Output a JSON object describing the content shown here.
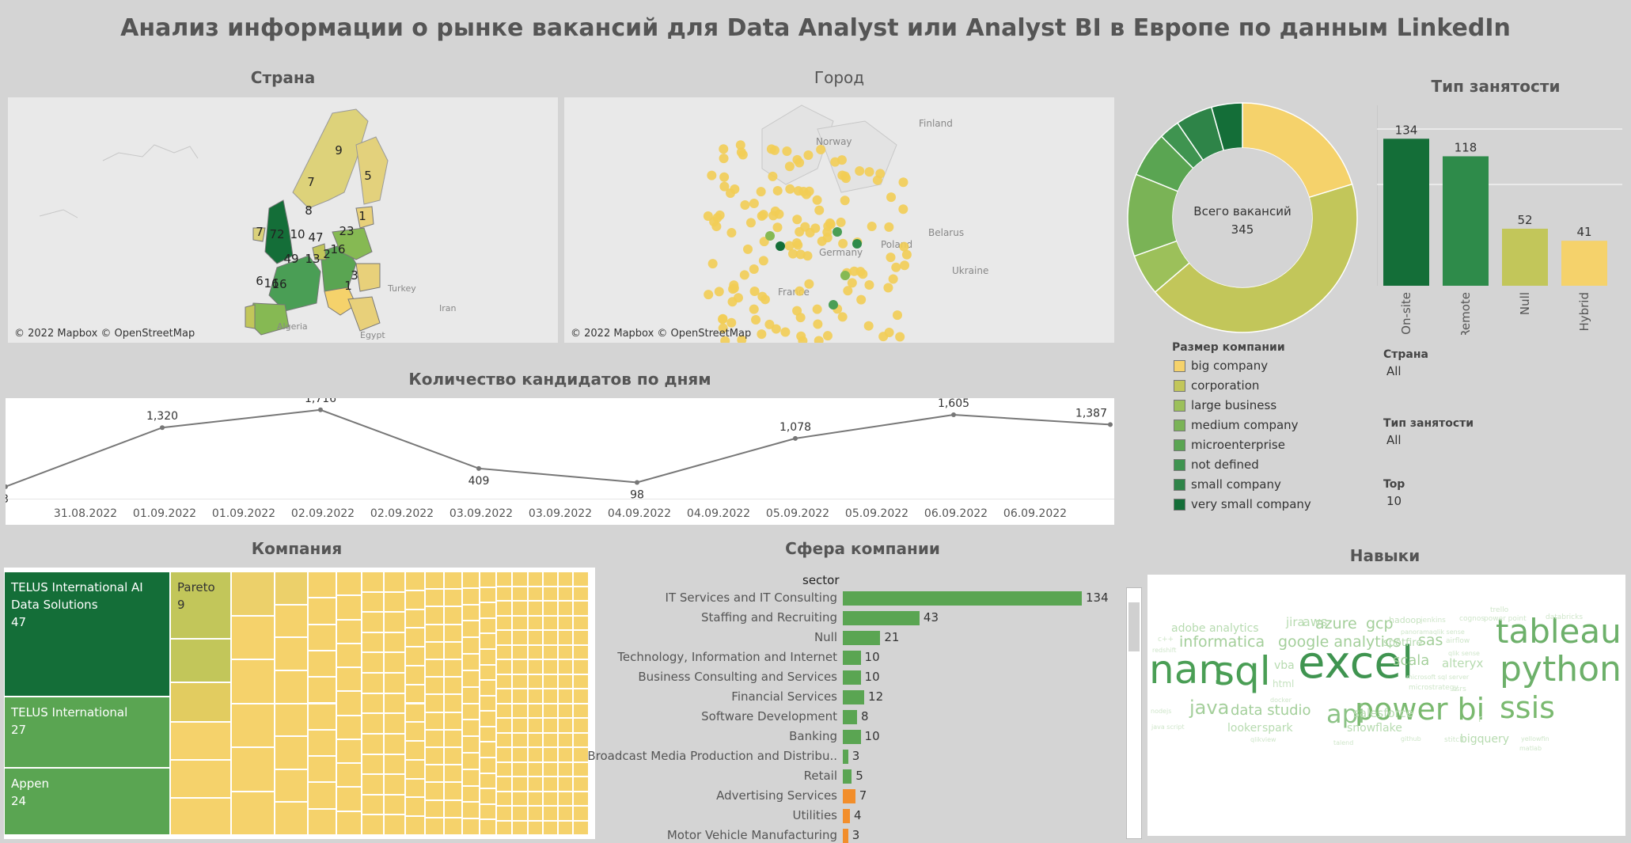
{
  "title": "Анализ информации о рынке вакансий для Data Analyst или Analyst BI в Европе по данным LinkedIn",
  "colors": {
    "very_dark_green": "#146e38",
    "dark_green": "#2e8b4a",
    "mid_green": "#4a9e55",
    "green": "#5aa552",
    "light_green": "#86b953",
    "olive": "#c2c65a",
    "yellow": "#f5d26b",
    "orange": "#f28e2b"
  },
  "map_country": {
    "title": "Страна",
    "credit": "© 2022 Mapbox © OpenStreetMap",
    "labels": [
      "9",
      "5",
      "7",
      "8",
      "1",
      "7",
      "72",
      "10",
      "47",
      "23",
      "16",
      "49",
      "13",
      "2",
      "16",
      "6",
      "16",
      "3",
      "1"
    ]
  },
  "map_city": {
    "title": "Город",
    "credit": "© 2022 Mapbox © OpenStreetMap",
    "place_names": [
      "Finland",
      "Norway",
      "Belarus",
      "Ukraine",
      "Poland",
      "Germany",
      "France"
    ]
  },
  "map_base_labels": [
    "Turkey",
    "Iran",
    "Algeria",
    "Egypt"
  ],
  "donut": {
    "center_label": "Всего вакансий",
    "center_value": "345"
  },
  "company_size_legend": {
    "title": "Размер компании",
    "items": [
      {
        "label": "big company",
        "color": "#f5d26b"
      },
      {
        "label": "corporation",
        "color": "#c2c65a"
      },
      {
        "label": "large business",
        "color": "#9cc05a"
      },
      {
        "label": "medium company",
        "color": "#7ab356"
      },
      {
        "label": "microenterprise",
        "color": "#5aa552"
      },
      {
        "label": "not defined",
        "color": "#3f9450"
      },
      {
        "label": "small company",
        "color": "#2e8448"
      },
      {
        "label": "very small company",
        "color": "#146e38"
      }
    ]
  },
  "filters": [
    {
      "label": "Страна",
      "value": "All"
    },
    {
      "label": "Тип занятости",
      "value": "All"
    },
    {
      "label": "Top",
      "value": "10"
    }
  ],
  "employment": {
    "title": "Тип занятости"
  },
  "line": {
    "title": "Количество кандидатов по дням",
    "visible_labels": [
      "3",
      "1,320",
      "1,716",
      "409",
      "98",
      "1,078",
      "1,605",
      "1,387"
    ]
  },
  "companies": {
    "title": "Компания",
    "cells": [
      {
        "name": "TELUS International AI Data Solutions",
        "value": "47"
      },
      {
        "name": "TELUS International",
        "value": "27"
      },
      {
        "name": "Appen",
        "value": "24"
      },
      {
        "name": "Pareto",
        "value": "9"
      }
    ]
  },
  "sectors": {
    "title": "Сфера компании",
    "header": "sector"
  },
  "skills": {
    "title": "Навыки",
    "words": [
      {
        "t": "excel",
        "s": 56,
        "c": "#3f9450"
      },
      {
        "t": "sql",
        "s": 50,
        "c": "#4a9e55"
      },
      {
        "t": "nan",
        "s": 50,
        "c": "#4a9e55"
      },
      {
        "t": "python",
        "s": 44,
        "c": "#6db06a"
      },
      {
        "t": "tableau",
        "s": 42,
        "c": "#6db06a"
      },
      {
        "t": "power bi",
        "s": 38,
        "c": "#7ab96f"
      },
      {
        "t": "ssis",
        "s": 38,
        "c": "#7ab96f"
      },
      {
        "t": "api",
        "s": 32,
        "c": "#8cc386"
      },
      {
        "t": "java",
        "s": 24,
        "c": "#a4cf9b"
      },
      {
        "t": "google analytics",
        "s": 19,
        "c": "#a4cf9b"
      },
      {
        "t": "informatica",
        "s": 19,
        "c": "#a4cf9b"
      },
      {
        "t": "azure",
        "s": 19,
        "c": "#a4cf9b"
      },
      {
        "t": "gcp",
        "s": 19,
        "c": "#a4cf9b"
      },
      {
        "t": "sas",
        "s": 19,
        "c": "#a4cf9b"
      },
      {
        "t": "scala",
        "s": 18,
        "c": "#a4cf9b"
      },
      {
        "t": "data studio",
        "s": 18,
        "c": "#a4cf9b"
      },
      {
        "t": "salesforce",
        "s": 15,
        "c": "#b7dbb0"
      },
      {
        "t": "adobe analytics",
        "s": 14,
        "c": "#b7dbb0"
      },
      {
        "t": "jira",
        "s": 15,
        "c": "#b7dbb0"
      },
      {
        "t": "aws",
        "s": 16,
        "c": "#b7dbb0"
      },
      {
        "t": "alteryx",
        "s": 15,
        "c": "#b7dbb0"
      },
      {
        "t": "looker",
        "s": 14,
        "c": "#b7dbb0"
      },
      {
        "t": "spark",
        "s": 14,
        "c": "#b7dbb0"
      },
      {
        "t": "snowflake",
        "s": 14,
        "c": "#b7dbb0"
      },
      {
        "t": "bigquery",
        "s": 14,
        "c": "#b7dbb0"
      },
      {
        "t": "vba",
        "s": 14,
        "c": "#b7dbb0"
      },
      {
        "t": "spotfire",
        "s": 13,
        "c": "#b7dbb0"
      },
      {
        "t": "html",
        "s": 12,
        "c": "#c6e2c0"
      },
      {
        "t": "hadoop",
        "s": 11,
        "c": "#c6e2c0"
      },
      {
        "t": "jenkins",
        "s": 9,
        "c": "#cfe6ca"
      },
      {
        "t": "cognos",
        "s": 9,
        "c": "#cfe6ca"
      },
      {
        "t": "power point",
        "s": 9,
        "c": "#cfe6ca"
      },
      {
        "t": "trello",
        "s": 9,
        "c": "#cfe6ca"
      },
      {
        "t": "databricks",
        "s": 9,
        "c": "#cfe6ca"
      },
      {
        "t": "panoramaqlik sense",
        "s": 8,
        "c": "#cfe6ca"
      },
      {
        "t": "airflow",
        "s": 9,
        "c": "#cfe6ca"
      },
      {
        "t": "qlik sense",
        "s": 8,
        "c": "#cfe6ca"
      },
      {
        "t": "c++",
        "s": 9,
        "c": "#cfe6ca"
      },
      {
        "t": "redshift",
        "s": 8,
        "c": "#cfe6ca"
      },
      {
        "t": "microsoft sql server",
        "s": 8,
        "c": "#cfe6ca"
      },
      {
        "t": "microstrategy",
        "s": 9,
        "c": "#cfe6ca"
      },
      {
        "t": "docker",
        "s": 8,
        "c": "#cfe6ca"
      },
      {
        "t": "r",
        "s": 12,
        "c": "#c6e2c0"
      },
      {
        "t": "ssrs",
        "s": 9,
        "c": "#cfe6ca"
      },
      {
        "t": "nodejs",
        "s": 8,
        "c": "#cfe6ca"
      },
      {
        "t": "java script",
        "s": 8,
        "c": "#cfe6ca"
      },
      {
        "t": "qlikview",
        "s": 8,
        "c": "#cfe6ca"
      },
      {
        "t": "talend",
        "s": 8,
        "c": "#cfe6ca"
      },
      {
        "t": "github",
        "s": 8,
        "c": "#cfe6ca"
      },
      {
        "t": "stitch",
        "s": 9,
        "c": "#cfe6ca"
      },
      {
        "t": "yellowfin",
        "s": 8,
        "c": "#cfe6ca"
      },
      {
        "t": "matlab",
        "s": 8,
        "c": "#cfe6ca"
      }
    ]
  },
  "chart_data": [
    {
      "type": "pie",
      "title": "",
      "categories": [
        "big company",
        "corporation",
        "large business",
        "medium company",
        "microenterprise",
        "not defined",
        "small company",
        "very small company"
      ],
      "values": [
        70,
        150,
        20,
        40,
        22,
        10,
        18,
        15
      ]
    },
    {
      "type": "bar",
      "title": "Тип занятости",
      "categories": [
        "On-site",
        "Remote",
        "Null",
        "Hybrid"
      ],
      "values": [
        134,
        118,
        52,
        41
      ],
      "colors": [
        "#146e38",
        "#2e8b4a",
        "#c2c65a",
        "#f5d26b"
      ],
      "ylim": [
        0,
        150
      ]
    },
    {
      "type": "line",
      "title": "Количество кандидатов по дням",
      "x": [
        "31.08.2022",
        "01.09.2022",
        "01.09.2022",
        "02.09.2022",
        "02.09.2022",
        "03.09.2022",
        "03.09.2022",
        "04.09.2022",
        "04.09.2022",
        "05.09.2022",
        "05.09.2022",
        "06.09.2022",
        "06.09.2022"
      ],
      "points": [
        {
          "i": -0.5,
          "y": 3,
          "label": "3"
        },
        {
          "i": 1,
          "y": 1320,
          "label": "1,320"
        },
        {
          "i": 3,
          "y": 1716,
          "label": "1,716"
        },
        {
          "i": 5,
          "y": 409,
          "label": "409"
        },
        {
          "i": 7,
          "y": 98,
          "label": "98"
        },
        {
          "i": 9,
          "y": 1078,
          "label": "1,078"
        },
        {
          "i": 11,
          "y": 1605,
          "label": "1,605"
        },
        {
          "i": 13.5,
          "y": 1387,
          "label": "1,387"
        }
      ],
      "ylim": [
        0,
        1800
      ]
    },
    {
      "type": "bar",
      "title": "Сфера компании",
      "orientation": "horizontal",
      "categories": [
        "IT Services and IT Consulting",
        "Staffing and Recruiting",
        "Null",
        "Technology, Information and Internet",
        "Business Consulting and Services",
        "Financial Services",
        "Software Development",
        "Banking",
        "Broadcast Media Production and Distribu..",
        "Retail",
        "Advertising Services",
        "Utilities",
        "Motor Vehicle Manufacturing"
      ],
      "values": [
        134,
        43,
        21,
        10,
        10,
        12,
        8,
        10,
        3,
        5,
        7,
        4,
        3
      ],
      "colors": [
        "#5aa552",
        "#5aa552",
        "#5aa552",
        "#5aa552",
        "#5aa552",
        "#5aa552",
        "#5aa552",
        "#5aa552",
        "#5aa552",
        "#5aa552",
        "#f28e2b",
        "#f28e2b",
        "#f28e2b"
      ]
    }
  ]
}
